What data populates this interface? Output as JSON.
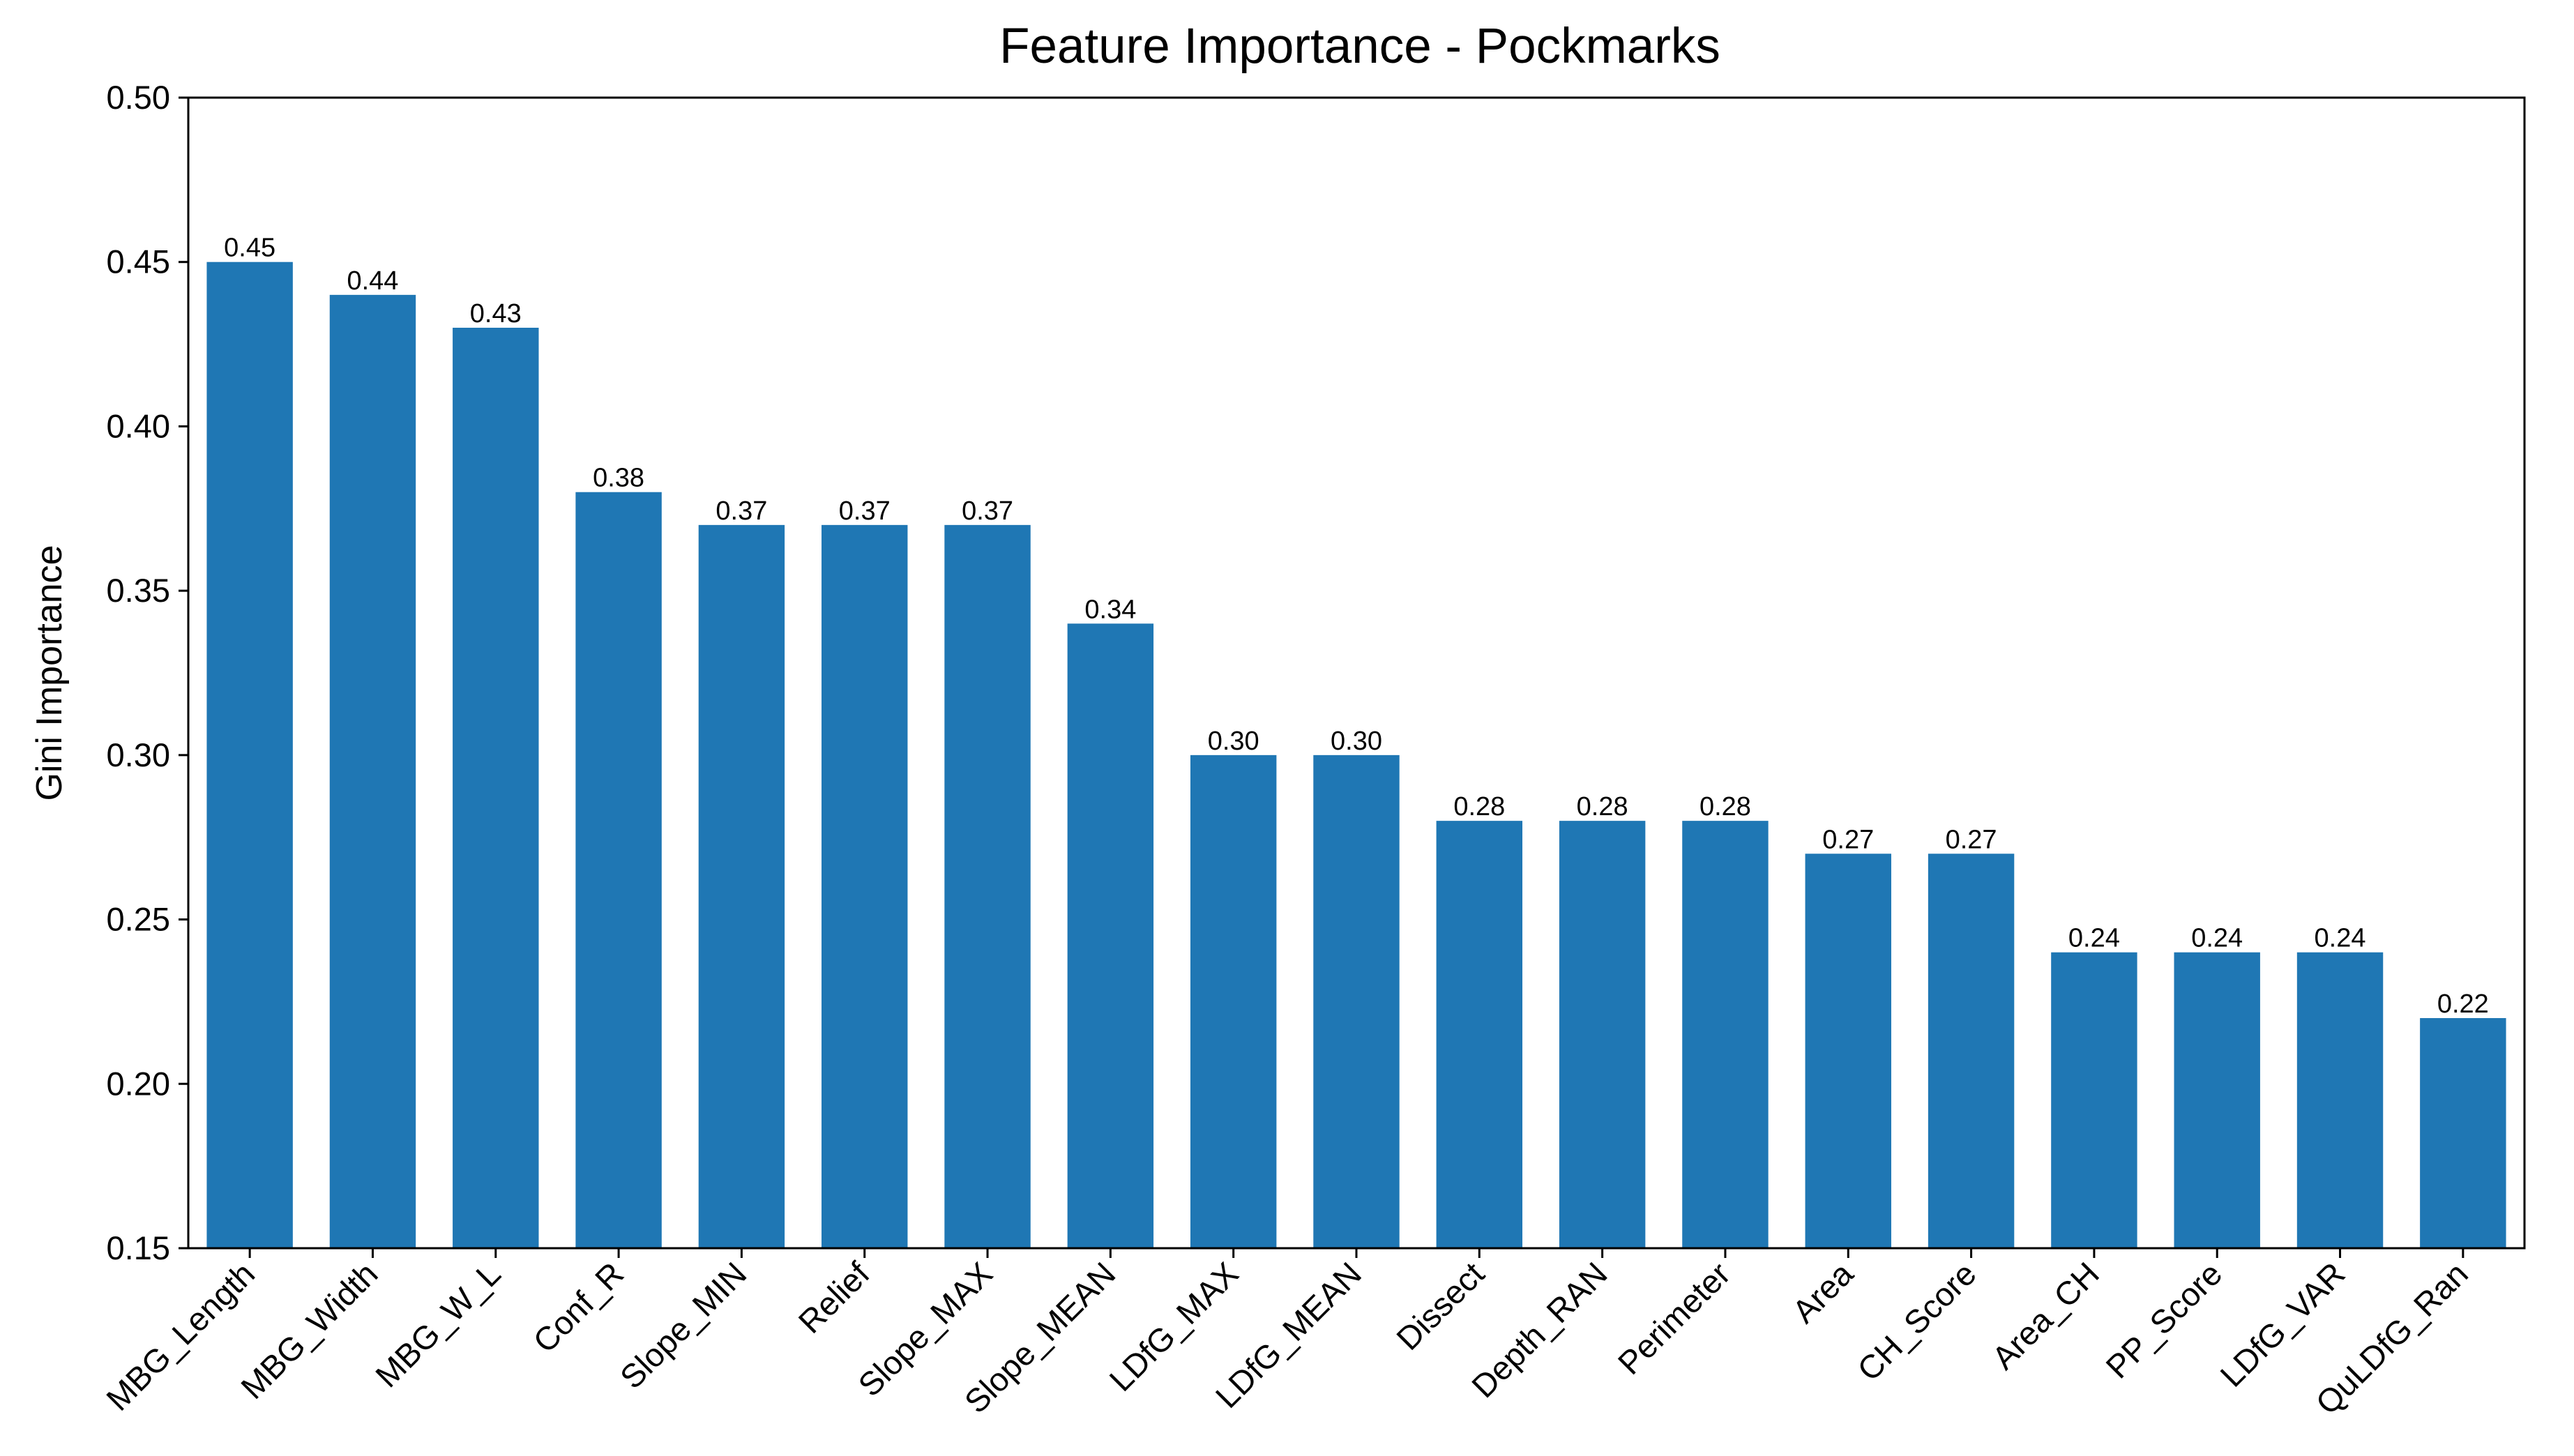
{
  "chart_data": {
    "type": "bar",
    "title": "Feature Importance - Pockmarks",
    "xlabel": "",
    "ylabel": "Gini Importance",
    "ylim": [
      0.15,
      0.5
    ],
    "yticks": [
      "0.15",
      "0.20",
      "0.25",
      "0.30",
      "0.35",
      "0.40",
      "0.45",
      "0.50"
    ],
    "grid": false,
    "bar_color": "#1f77b4",
    "categories": [
      "MBG_Length",
      "MBG_Width",
      "MBG_W_L",
      "Conf_R",
      "Slope_MIN",
      "Relief",
      "Slope_MAX",
      "Slope_MEAN",
      "LDfG_MAX",
      "LDfG_MEAN",
      "Dissect",
      "Depth_RAN",
      "Perimeter",
      "Area",
      "CH_Score",
      "Area_CH",
      "PP_Score",
      "LDfG_VAR",
      "QuLDfG_Ran"
    ],
    "values": [
      0.45,
      0.44,
      0.43,
      0.38,
      0.37,
      0.37,
      0.37,
      0.34,
      0.3,
      0.3,
      0.28,
      0.28,
      0.28,
      0.27,
      0.27,
      0.24,
      0.24,
      0.24,
      0.22
    ],
    "value_labels": [
      "0.45",
      "0.44",
      "0.43",
      "0.38",
      "0.37",
      "0.37",
      "0.37",
      "0.34",
      "0.30",
      "0.30",
      "0.28",
      "0.28",
      "0.28",
      "0.27",
      "0.27",
      "0.24",
      "0.24",
      "0.24",
      "0.22"
    ]
  }
}
